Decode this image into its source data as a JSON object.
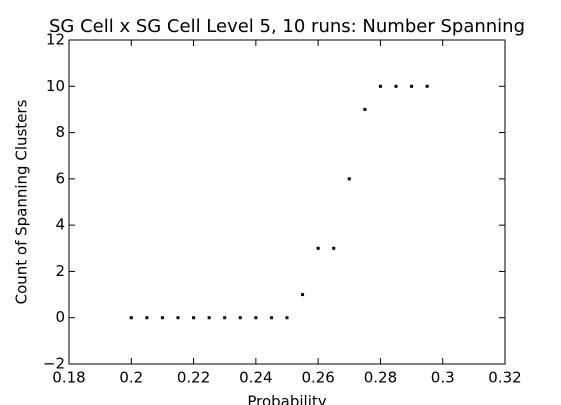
{
  "chart_data": {
    "type": "scatter",
    "title": "SG Cell x SG Cell Level 5, 10 runs: Number Spanning",
    "x_label": "Probability",
    "y_label": "Count of Spanning Clusters",
    "color": "#000000",
    "x": [
      0.2,
      0.205,
      0.21,
      0.215,
      0.22,
      0.225,
      0.23,
      0.235,
      0.24,
      0.245,
      0.25,
      0.255,
      0.26,
      0.265,
      0.27,
      0.275,
      0.28,
      0.285,
      0.29,
      0.295
    ],
    "values": [
      0,
      0,
      0,
      0,
      0,
      0,
      0,
      0,
      0,
      0,
      0,
      1,
      3,
      3,
      6,
      9,
      10,
      10,
      10,
      10
    ],
    "xlim": [
      0.18,
      0.32
    ],
    "xticks": [
      0.18,
      0.2,
      0.22,
      0.24,
      0.26,
      0.28,
      0.3,
      0.32
    ],
    "ylim": [
      -2,
      12
    ],
    "yticks": [
      {
        "value": -2,
        "label": "−2"
      },
      0,
      2,
      4,
      6,
      8,
      10,
      12
    ]
  }
}
